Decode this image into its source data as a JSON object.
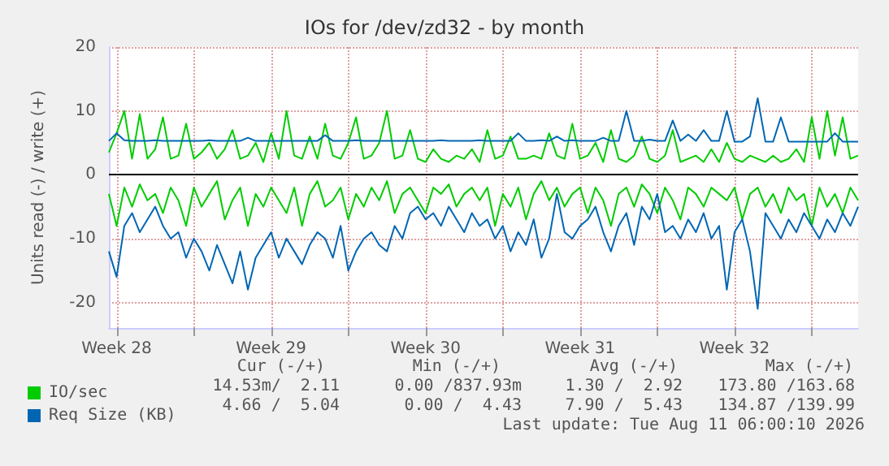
{
  "chart_data": {
    "type": "line",
    "title": "IOs for /dev/zd32 - by month",
    "ylabel": "Units read (-) / write (+)",
    "categories": [
      null,
      "Week 28",
      null,
      null,
      null,
      null,
      null,
      null,
      null,
      null,
      null,
      null,
      null,
      null,
      null,
      null,
      null,
      null,
      null,
      null,
      null,
      "Week 29",
      null,
      null,
      null,
      null,
      null,
      null,
      null,
      null,
      null,
      null,
      null,
      null,
      null,
      null,
      null,
      null,
      null,
      null,
      null,
      "Week 30",
      null,
      null,
      null,
      null,
      null,
      null,
      null,
      null,
      null,
      null,
      null,
      null,
      null,
      null,
      null,
      null,
      null,
      null,
      null,
      "Week 31",
      null,
      null,
      null,
      null,
      null,
      null,
      null,
      null,
      null,
      null,
      null,
      null,
      null,
      null,
      null,
      null,
      null,
      null,
      null,
      "Week 32",
      null,
      null,
      null,
      null,
      null,
      null,
      null,
      null,
      null,
      null,
      null,
      null,
      null,
      null,
      null,
      null
    ],
    "series": [
      {
        "name": "IO/sec",
        "color": "#00cc00",
        "values": [
          3.5,
          6.5,
          10,
          2.5,
          9.5,
          2.5,
          4,
          9,
          2.5,
          3,
          8,
          2.5,
          3.5,
          5,
          2.5,
          4,
          7,
          2.5,
          3,
          5,
          2,
          6.5,
          2.5,
          10,
          3,
          2.5,
          6,
          2.5,
          8,
          3,
          2.5,
          5,
          9,
          2.5,
          3,
          5,
          10,
          2.5,
          3,
          7,
          2.5,
          2,
          4,
          2.5,
          2,
          3,
          2.5,
          4,
          2,
          7,
          2.5,
          3,
          6,
          2.5,
          2.5,
          3,
          2.5,
          6.5,
          3,
          2.5,
          8,
          2.5,
          3,
          5,
          2,
          7,
          2.5,
          2,
          3,
          6,
          2.5,
          2,
          3,
          7,
          2,
          2.5,
          3,
          2,
          4,
          2,
          5,
          2.5,
          2,
          3,
          2.5,
          2,
          3,
          2,
          2.5,
          4,
          2,
          9,
          2.5,
          10,
          3,
          9,
          2.5,
          3
        ]
      },
      {
        "color": "#00cc00",
        "values": [
          -3,
          -8,
          -2,
          -5,
          -1.5,
          -4,
          -3,
          -6,
          -2,
          -4,
          -8,
          -2,
          -5,
          -3,
          -1,
          -7,
          -4,
          -2,
          -8,
          -3,
          -5,
          -2,
          -4,
          -6,
          -2,
          -8,
          -3,
          -1,
          -5,
          -4,
          -2,
          -7,
          -3,
          -5,
          -2,
          -4,
          -1,
          -6,
          -3,
          -2,
          -4,
          -6,
          -2,
          -3,
          -1.5,
          -5,
          -3,
          -2,
          -4,
          -2,
          -8,
          -3,
          -5,
          -2,
          -7,
          -3,
          -1,
          -4,
          -2,
          -5,
          -3,
          -2,
          -6,
          -2,
          -4,
          -8,
          -3,
          -2,
          -5,
          -1.5,
          -3,
          -6,
          -2,
          -4,
          -7,
          -2,
          -3,
          -5,
          -2,
          -3,
          -4,
          -2,
          -7,
          -3,
          -2,
          -5,
          -3,
          -6,
          -2,
          -4,
          -3,
          -8,
          -2,
          -5,
          -3,
          -6,
          -2,
          -4
        ]
      },
      {
        "name": "Req Size (KB)",
        "color": "#0066b3",
        "values": [
          5.3,
          6.5,
          5.4,
          5.3,
          5.3,
          5.3,
          5.4,
          5.3,
          5.3,
          5.3,
          5.3,
          5.3,
          5.3,
          5.4,
          5.3,
          5.3,
          5.3,
          5.3,
          5.8,
          5.3,
          5.3,
          5.3,
          5.3,
          5.3,
          5.3,
          5.3,
          5.3,
          5.3,
          6.2,
          5.3,
          5.3,
          5.3,
          5.4,
          5.3,
          5.3,
          5.3,
          5.3,
          5.3,
          5.3,
          5.3,
          5.3,
          5.3,
          5.3,
          5.4,
          5.3,
          5.3,
          5.3,
          5.3,
          5.4,
          5.3,
          5.3,
          5.3,
          5.3,
          6.5,
          5.3,
          5.3,
          5.4,
          5.3,
          6,
          5.3,
          5.4,
          5.3,
          5.3,
          5.3,
          5.8,
          5.3,
          5.3,
          10,
          5.3,
          5.3,
          5.5,
          5.3,
          5.3,
          8.5,
          5.3,
          6.3,
          5.3,
          7,
          5.3,
          5.3,
          10,
          5.2,
          5.2,
          6,
          12,
          5.2,
          5.2,
          9,
          5.2,
          5.2,
          5.2,
          5.2,
          5.2,
          5.2,
          6.5,
          5.2,
          5.2,
          5.2
        ]
      },
      {
        "color": "#0066b3",
        "values": [
          -12,
          -16,
          -8,
          -6,
          -9,
          -7,
          -5,
          -8,
          -10,
          -9,
          -13,
          -10,
          -12,
          -15,
          -11,
          -14,
          -17,
          -12,
          -18,
          -13,
          -11,
          -9,
          -13,
          -10,
          -12,
          -14,
          -11,
          -9,
          -10,
          -13,
          -8,
          -15,
          -12,
          -10,
          -9,
          -11,
          -12,
          -8,
          -10,
          -6,
          -5,
          -7,
          -6,
          -8,
          -5,
          -7,
          -9,
          -6,
          -8,
          -7,
          -10,
          -8,
          -12,
          -9,
          -11,
          -7,
          -13,
          -10,
          -3,
          -9,
          -10,
          -8,
          -7,
          -5,
          -9,
          -12,
          -8,
          -6,
          -11,
          -5,
          -7,
          -3,
          -9,
          -8,
          -10,
          -7,
          -9,
          -6,
          -10,
          -8,
          -18,
          -9,
          -7,
          -12,
          -21,
          -6,
          -8,
          -10,
          -7,
          -9,
          -6,
          -8,
          -10,
          -7,
          -9,
          -6,
          -8,
          -5
        ]
      }
    ],
    "ylim": [
      -24,
      20
    ],
    "yticks": [
      -20,
      -10,
      0,
      10,
      20
    ],
    "ref_lines": [
      {
        "axis": "y",
        "value": 0,
        "color": "#000000"
      }
    ],
    "grid": true,
    "legend": "bottom left",
    "marker": "none",
    "line_style": "solid",
    "annotations": [
      "Cur (-/+)",
      "Min (-/+)",
      "Avg (-/+)",
      "Max (-/+)",
      "14.53m/  2.11",
      "0.00 /837.93m",
      "1.30 /  2.92",
      "173.80 /163.68",
      "4.66 /  5.04",
      "0.00 /  4.43",
      "7.90 /  5.43",
      "134.87 /139.99",
      "Last update: Tue Aug 11 06:00:10 2026"
    ]
  }
}
